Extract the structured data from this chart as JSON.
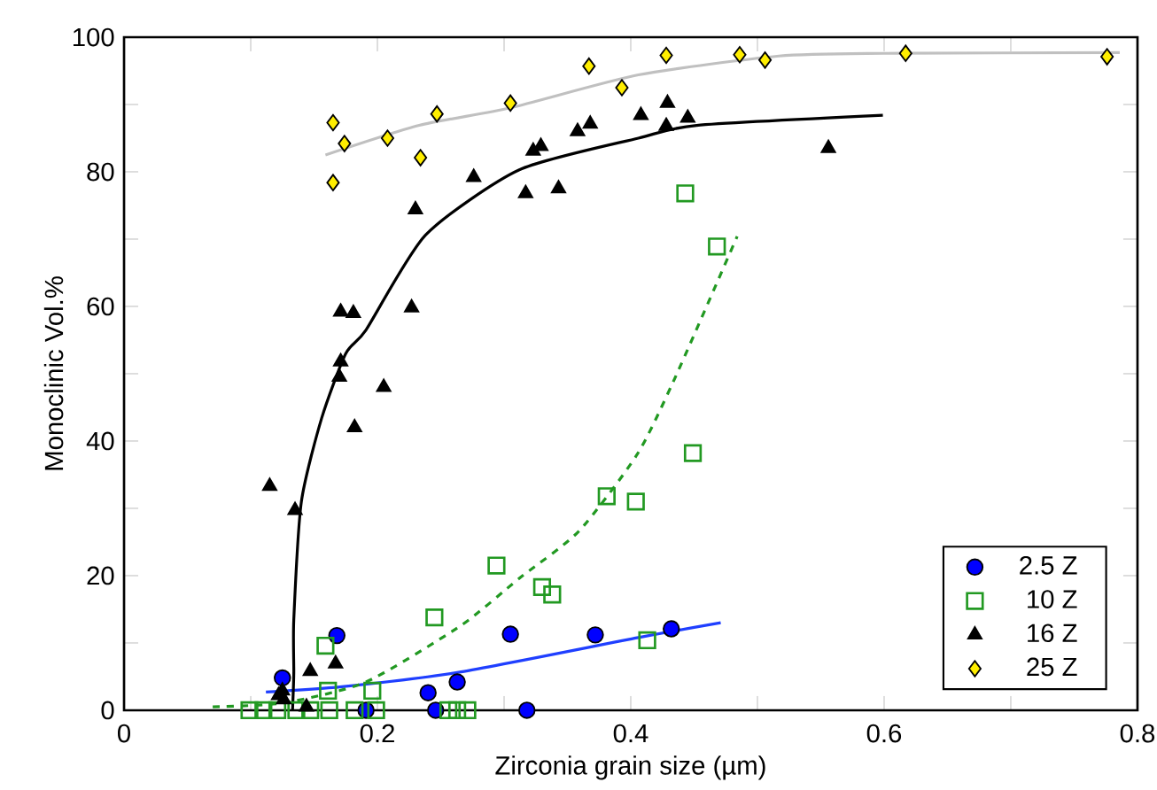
{
  "chart_data": {
    "type": "scatter",
    "xlabel": "Zirconia grain size (µm)",
    "ylabel": "Monoclinic Vol.%",
    "xlim": [
      0,
      0.8
    ],
    "ylim": [
      0,
      100
    ],
    "xticks": [
      0,
      {
        "value": 0.1,
        "label": null
      },
      0.2,
      {
        "value": 0.3,
        "label": null
      },
      0.4,
      {
        "value": 0.5,
        "label": null
      },
      0.6,
      {
        "value": 0.7,
        "label": null
      },
      0.8
    ],
    "yticks": [
      0,
      {
        "value": 10,
        "label": null
      },
      20,
      {
        "value": 30,
        "label": null
      },
      40,
      {
        "value": 50,
        "label": null
      },
      60,
      {
        "value": 70,
        "label": null
      },
      80,
      {
        "value": 90,
        "label": null
      },
      100
    ],
    "legend": "bottom right",
    "series": [
      {
        "type": "line",
        "color": "#1f3fff",
        "line_style": "solid",
        "x": [
          0.112,
          0.172,
          0.266,
          0.406,
          0.471
        ],
        "values": [
          2.7,
          3.5,
          5.7,
          10.8,
          13.0
        ]
      },
      {
        "type": "line",
        "color": "#229922",
        "line_style": "dashed",
        "x": [
          0.07,
          0.126,
          0.191,
          0.266,
          0.312,
          0.359,
          0.405,
          0.434,
          0.484
        ],
        "values": [
          0.5,
          1.1,
          4.2,
          12.6,
          19.6,
          26.6,
          38,
          49,
          70.4
        ]
      },
      {
        "type": "line",
        "color": "#000000",
        "line_style": "solid",
        "x": [
          0.133,
          0.134,
          0.134,
          0.14,
          0.156,
          0.175,
          0.191,
          0.238,
          0.312,
          0.406,
          0.452,
          0.599
        ],
        "values": [
          0,
          5.5,
          13.5,
          31,
          43.4,
          53,
          56.5,
          70.6,
          80.3,
          85,
          86.9,
          88.4
        ]
      },
      {
        "type": "line",
        "color": "#c0c0c0",
        "line_style": "solid",
        "x": [
          0.159,
          0.233,
          0.305,
          0.406,
          0.517,
          0.6,
          0.786
        ],
        "values": [
          82.5,
          86.9,
          89.5,
          94.4,
          97.2,
          97.6,
          97.7
        ]
      },
      {
        "name": "2.5 Z",
        "marker": "circle",
        "color": "#0000ff",
        "x": [
          0.168,
          0.125,
          0.24,
          0.263,
          0.246,
          0.305,
          0.318,
          0.372,
          0.432,
          0.191
        ],
        "values": [
          11.1,
          4.8,
          2.6,
          4.2,
          0,
          11.3,
          0,
          11.2,
          12.1,
          0
        ]
      },
      {
        "name": "10 Z",
        "marker": "square",
        "color": "#229922",
        "x": [
          0.159,
          0.161,
          0.196,
          0.245,
          0.294,
          0.33,
          0.338,
          0.381,
          0.404,
          0.449,
          0.413,
          0.443,
          0.468,
          0.099,
          0.11,
          0.121,
          0.136,
          0.147,
          0.162,
          0.182,
          0.199,
          0.256,
          0.263,
          0.271
        ],
        "values": [
          9.6,
          2.9,
          2.9,
          13.8,
          21.5,
          18.3,
          17.2,
          31.8,
          31.0,
          38.2,
          10.4,
          76.8,
          68.9,
          0,
          0,
          0,
          0,
          0,
          0,
          0,
          0,
          0,
          0,
          0
        ]
      },
      {
        "name": "16 Z",
        "marker": "triangle",
        "color": "#000000",
        "x": [
          0.171,
          0.181,
          0.227,
          0.23,
          0.276,
          0.317,
          0.343,
          0.323,
          0.329,
          0.358,
          0.368,
          0.408,
          0.429,
          0.428,
          0.445,
          0.556,
          0.171,
          0.17,
          0.205,
          0.182,
          0.115,
          0.135,
          0.167,
          0.147,
          0.125,
          0.126,
          0.144,
          0.122
        ],
        "values": [
          59.2,
          59.0,
          59.8,
          74.4,
          79.2,
          76.8,
          77.5,
          83.1,
          83.8,
          86.0,
          87.1,
          88.4,
          90.2,
          86.8,
          88.0,
          83.5,
          51.8,
          49.5,
          48.0,
          42.0,
          33.3,
          29.7,
          6.9,
          5.8,
          2.9,
          1.6,
          0.5,
          2.2
        ]
      },
      {
        "name": "25 Z",
        "marker": "diamond",
        "color": "#ffee00",
        "x": [
          0.165,
          0.174,
          0.165,
          0.208,
          0.234,
          0.247,
          0.305,
          0.367,
          0.393,
          0.428,
          0.486,
          0.506,
          0.617,
          0.776
        ],
        "values": [
          87.3,
          84.2,
          78.4,
          85.0,
          82.1,
          88.6,
          90.2,
          95.7,
          92.5,
          97.3,
          97.4,
          96.6,
          97.6,
          97.1
        ]
      }
    ]
  }
}
